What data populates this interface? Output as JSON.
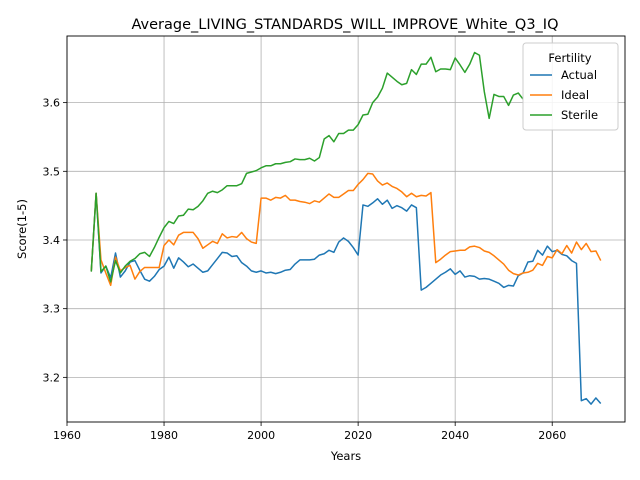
{
  "chart_data": {
    "type": "line",
    "title": "Average_LIVING_STANDARDS_WILL_IMPROVE_White_Q3_IQ",
    "xlabel": "Years",
    "ylabel": "Score(1-5)",
    "xlim": [
      1960,
      2075
    ],
    "ylim": [
      3.135,
      3.697
    ],
    "x_ticks": [
      1960,
      1980,
      2000,
      2020,
      2040,
      2060
    ],
    "y_ticks": [
      3.2,
      3.3,
      3.4,
      3.5,
      3.6
    ],
    "grid": true,
    "legend": {
      "title": "Fertility",
      "placement": "top-right"
    },
    "series": [
      {
        "name": "Actual",
        "color": "#1f77b4",
        "x_start": 1965,
        "values": [
          3.354,
          3.468,
          3.352,
          3.362,
          3.345,
          3.381,
          3.346,
          3.355,
          3.368,
          3.37,
          3.356,
          3.343,
          3.34,
          3.347,
          3.357,
          3.362,
          3.375,
          3.359,
          3.374,
          3.368,
          3.361,
          3.365,
          3.359,
          3.353,
          3.355,
          3.364,
          3.373,
          3.382,
          3.381,
          3.376,
          3.377,
          3.367,
          3.362,
          3.355,
          3.353,
          3.355,
          3.352,
          3.353,
          3.351,
          3.353,
          3.356,
          3.357,
          3.365,
          3.371,
          3.371,
          3.371,
          3.372,
          3.378,
          3.38,
          3.385,
          3.382,
          3.397,
          3.403,
          3.398,
          3.389,
          3.378,
          3.451,
          3.449,
          3.454,
          3.46,
          3.452,
          3.458,
          3.446,
          3.45,
          3.447,
          3.442,
          3.451,
          3.447,
          3.327,
          3.331,
          3.337,
          3.343,
          3.349,
          3.353,
          3.358,
          3.35,
          3.355,
          3.346,
          3.348,
          3.347,
          3.343,
          3.344,
          3.343,
          3.34,
          3.337,
          3.331,
          3.334,
          3.333,
          3.348,
          3.352,
          3.368,
          3.369,
          3.385,
          3.378,
          3.391,
          3.383,
          3.385,
          3.379,
          3.377,
          3.37,
          3.366,
          3.166,
          3.169,
          3.161,
          3.17,
          3.162
        ]
      },
      {
        "name": "Ideal",
        "color": "#ff7f0e",
        "x_start": 1965,
        "values": [
          3.354,
          3.468,
          3.371,
          3.352,
          3.334,
          3.375,
          3.355,
          3.36,
          3.363,
          3.343,
          3.354,
          3.36,
          3.36,
          3.36,
          3.36,
          3.392,
          3.4,
          3.393,
          3.407,
          3.411,
          3.411,
          3.411,
          3.402,
          3.388,
          3.393,
          3.398,
          3.395,
          3.409,
          3.403,
          3.405,
          3.404,
          3.411,
          3.402,
          3.397,
          3.395,
          3.461,
          3.461,
          3.458,
          3.462,
          3.461,
          3.465,
          3.458,
          3.458,
          3.456,
          3.455,
          3.453,
          3.457,
          3.455,
          3.461,
          3.467,
          3.462,
          3.462,
          3.467,
          3.472,
          3.472,
          3.481,
          3.488,
          3.497,
          3.496,
          3.486,
          3.48,
          3.483,
          3.478,
          3.475,
          3.47,
          3.463,
          3.468,
          3.463,
          3.465,
          3.464,
          3.469,
          3.367,
          3.372,
          3.378,
          3.383,
          3.384,
          3.385,
          3.385,
          3.39,
          3.391,
          3.389,
          3.384,
          3.382,
          3.377,
          3.371,
          3.365,
          3.356,
          3.351,
          3.349,
          3.352,
          3.353,
          3.356,
          3.366,
          3.363,
          3.376,
          3.374,
          3.386,
          3.38,
          3.392,
          3.381,
          3.397,
          3.386,
          3.395,
          3.383,
          3.384,
          3.37
        ]
      },
      {
        "name": "Sterile",
        "color": "#2ca02c",
        "x_start": 1965,
        "values": [
          3.354,
          3.468,
          3.354,
          3.362,
          3.339,
          3.37,
          3.352,
          3.362,
          3.369,
          3.373,
          3.38,
          3.382,
          3.376,
          3.389,
          3.404,
          3.418,
          3.427,
          3.424,
          3.435,
          3.436,
          3.445,
          3.444,
          3.449,
          3.457,
          3.468,
          3.471,
          3.469,
          3.473,
          3.479,
          3.479,
          3.479,
          3.482,
          3.497,
          3.499,
          3.501,
          3.505,
          3.508,
          3.508,
          3.511,
          3.511,
          3.513,
          3.514,
          3.518,
          3.517,
          3.517,
          3.519,
          3.515,
          3.52,
          3.547,
          3.552,
          3.543,
          3.555,
          3.555,
          3.56,
          3.56,
          3.568,
          3.582,
          3.583,
          3.6,
          3.608,
          3.621,
          3.643,
          3.637,
          3.631,
          3.626,
          3.628,
          3.648,
          3.641,
          3.656,
          3.656,
          3.666,
          3.645,
          3.649,
          3.649,
          3.648,
          3.665,
          3.655,
          3.644,
          3.656,
          3.673,
          3.669,
          3.616,
          3.577,
          3.612,
          3.609,
          3.609,
          3.596,
          3.611,
          3.614,
          3.605
        ]
      }
    ]
  }
}
